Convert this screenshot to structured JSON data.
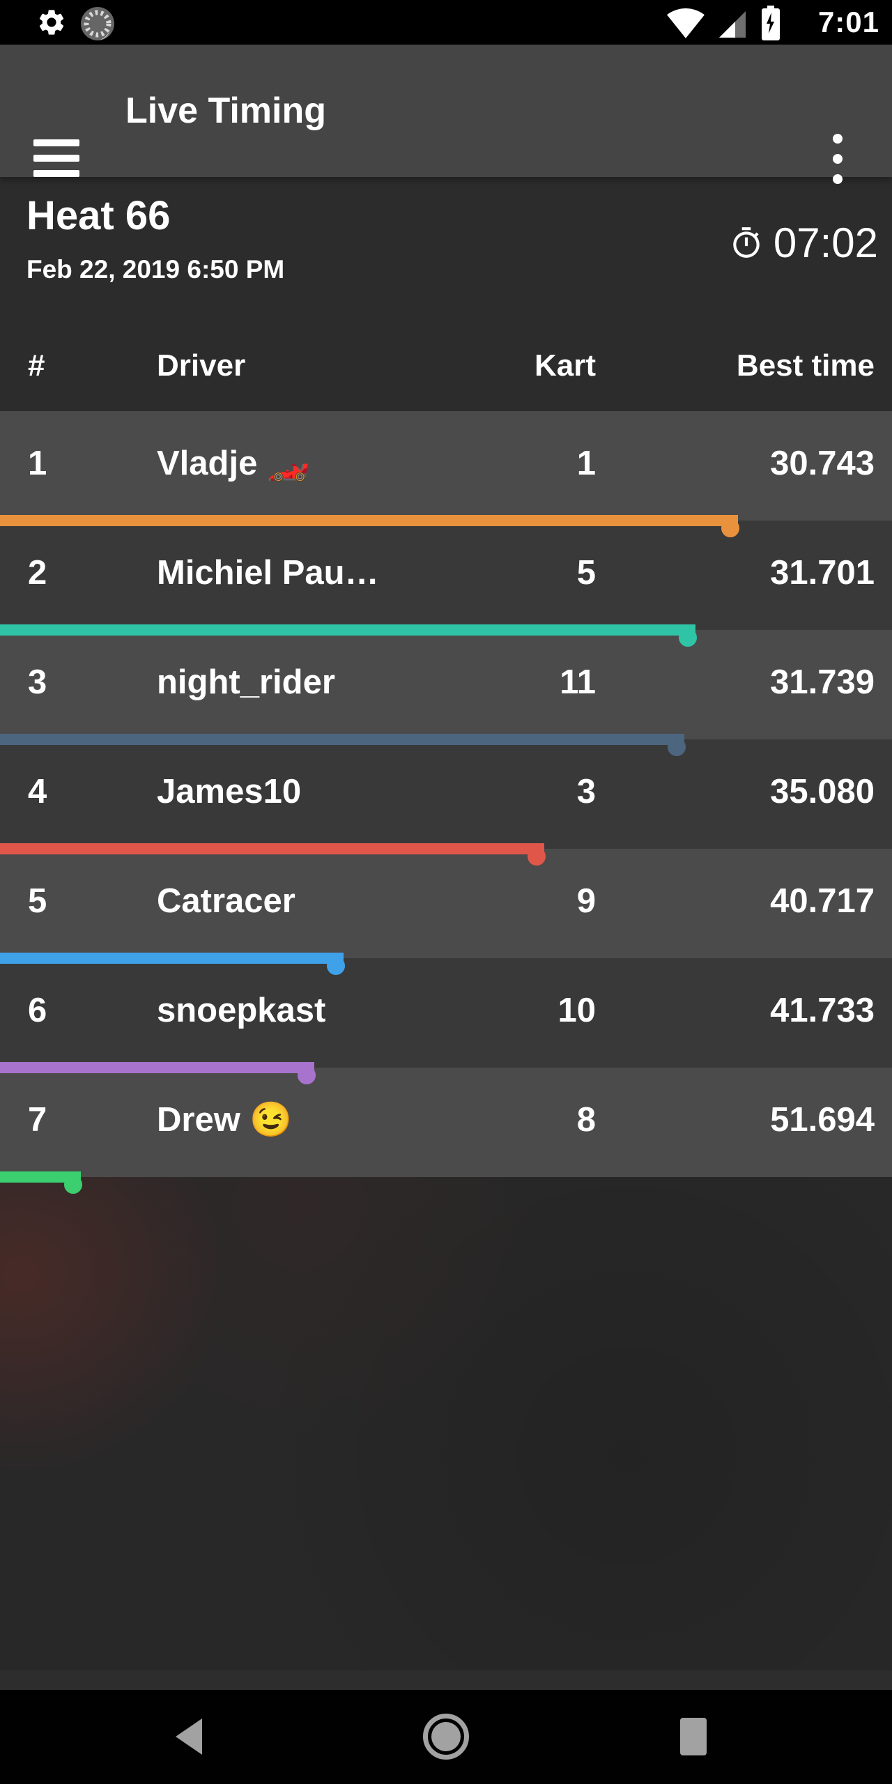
{
  "status_bar": {
    "time": "7:01",
    "icons": [
      "gear-icon",
      "sync-spinner-icon",
      "wifi-icon",
      "cell-signal-icon",
      "battery-charging-icon"
    ]
  },
  "app_bar": {
    "title": "Live Timing",
    "icons": [
      "menu-icon",
      "overflow-menu-icon"
    ]
  },
  "session": {
    "title": "Heat 66",
    "datetime": "Feb 22, 2019 6:50 PM",
    "timer": "07:02",
    "timer_icon": "stopwatch-icon"
  },
  "table": {
    "columns": {
      "rank": "#",
      "driver": "Driver",
      "kart": "Kart",
      "best_time": "Best time"
    },
    "rows": [
      {
        "rank": "1",
        "driver": "Vladje 🏎️",
        "kart": "1",
        "best_time": "30.743",
        "bar_color": "#e8923d",
        "bar_pct": 82.7
      },
      {
        "rank": "2",
        "driver": "Michiel Pau…",
        "kart": "5",
        "best_time": "31.701",
        "bar_color": "#2ec4a5",
        "bar_pct": 78.0
      },
      {
        "rank": "3",
        "driver": "night_rider",
        "kart": "11",
        "best_time": "31.739",
        "bar_color": "#4c6680",
        "bar_pct": 76.7
      },
      {
        "rank": "4",
        "driver": "James10",
        "kart": "3",
        "best_time": "35.080",
        "bar_color": "#e0574a",
        "bar_pct": 61.0
      },
      {
        "rank": "5",
        "driver": "Catracer",
        "kart": "9",
        "best_time": "40.717",
        "bar_color": "#3fa2e9",
        "bar_pct": 38.5
      },
      {
        "rank": "6",
        "driver": "snoepkast",
        "kart": "10",
        "best_time": "41.733",
        "bar_color": "#a873cc",
        "bar_pct": 35.2
      },
      {
        "rank": "7",
        "driver": "Drew 😉",
        "kart": "8",
        "best_time": "51.694",
        "bar_color": "#3bcf6f",
        "bar_pct": 9.1
      }
    ]
  },
  "nav_bar": {
    "icons": [
      "back-icon",
      "home-icon",
      "recents-icon"
    ]
  },
  "colors": {
    "row_odd": "#4b4b4b",
    "row_even": "#393939",
    "header_bg": "#2c2c2c",
    "app_bar_bg": "#454545",
    "ring_hole": "#3c3c3c",
    "nav_icon": "#a2a2a2"
  }
}
